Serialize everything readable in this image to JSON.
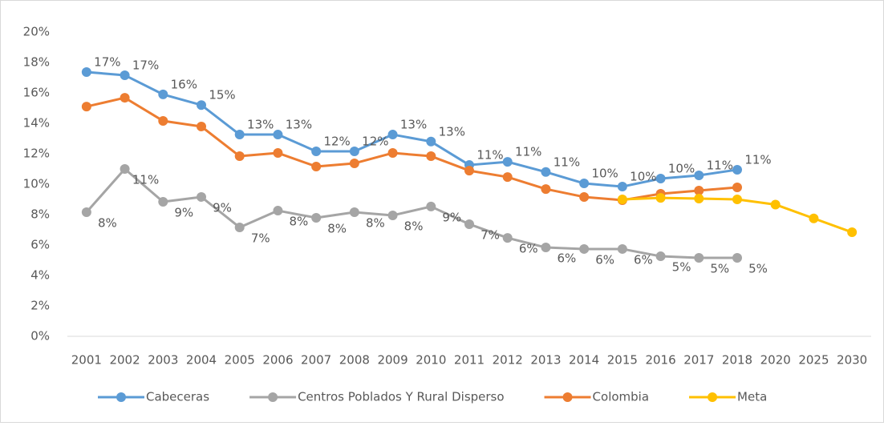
{
  "chart_data": {
    "type": "line",
    "categories": [
      "2001",
      "2002",
      "2003",
      "2004",
      "2005",
      "2006",
      "2007",
      "2008",
      "2009",
      "2010",
      "2011",
      "2012",
      "2013",
      "2014",
      "2015",
      "2016",
      "2017",
      "2018",
      "2020",
      "2025",
      "2030"
    ],
    "ylim": [
      0,
      20
    ],
    "yticks": [
      {
        "value": 0,
        "label": "0%"
      },
      {
        "value": 2,
        "label": "2%"
      },
      {
        "value": 4,
        "label": "4%"
      },
      {
        "value": 6,
        "label": "6%"
      },
      {
        "value": 8,
        "label": "8%"
      },
      {
        "value": 10,
        "label": "10%"
      },
      {
        "value": 12,
        "label": "12%"
      },
      {
        "value": 14,
        "label": "14%"
      },
      {
        "value": 16,
        "label": "16%"
      },
      {
        "value": 18,
        "label": "18%"
      },
      {
        "value": 20,
        "label": "20%"
      }
    ],
    "grid": false,
    "legend": "bottom",
    "series": [
      {
        "name": "Cabeceras",
        "color": "#5b9bd5",
        "values": [
          17.37,
          17.16,
          15.9,
          15.2,
          13.26,
          13.26,
          12.16,
          12.16,
          13.26,
          12.8,
          11.26,
          11.47,
          10.8,
          10.05,
          9.84,
          10.37,
          10.58,
          10.95,
          null,
          null,
          null
        ],
        "value_labels": [
          "17%",
          "17%",
          "16%",
          "15%",
          "13%",
          "13%",
          "12%",
          "12%",
          "13%",
          "13%",
          "11%",
          "11%",
          "11%",
          "10%",
          "10%",
          "10%",
          "11%",
          "11%",
          null,
          null,
          null
        ]
      },
      {
        "name": "Centros Poblados Y Rural Disperso",
        "color": "#a5a5a5",
        "values": [
          8.16,
          11.0,
          8.84,
          9.16,
          7.16,
          8.26,
          7.79,
          8.16,
          7.95,
          8.53,
          7.37,
          6.47,
          5.84,
          5.74,
          5.74,
          5.26,
          5.16,
          5.16,
          null,
          null,
          null
        ],
        "value_labels": [
          "8%",
          "11%",
          "9%",
          "9%",
          "7%",
          "8%",
          "8%",
          "8%",
          "8%",
          "9%",
          "7%",
          "6%",
          "6%",
          "6%",
          "6%",
          "5%",
          "5%",
          "5%",
          null,
          null,
          null
        ]
      },
      {
        "name": "Colombia",
        "color": "#ed7d31",
        "values": [
          15.1,
          15.68,
          14.16,
          13.79,
          11.84,
          12.05,
          11.16,
          11.37,
          12.05,
          11.84,
          10.89,
          10.47,
          9.68,
          9.16,
          8.95,
          9.37,
          9.58,
          9.79,
          null,
          null,
          null
        ]
      },
      {
        "name": "Meta",
        "color": "#ffc000",
        "values": [
          null,
          null,
          null,
          null,
          null,
          null,
          null,
          null,
          null,
          null,
          null,
          null,
          null,
          null,
          9.0,
          9.1,
          9.05,
          9.0,
          8.66,
          7.75,
          6.84
        ]
      }
    ]
  }
}
